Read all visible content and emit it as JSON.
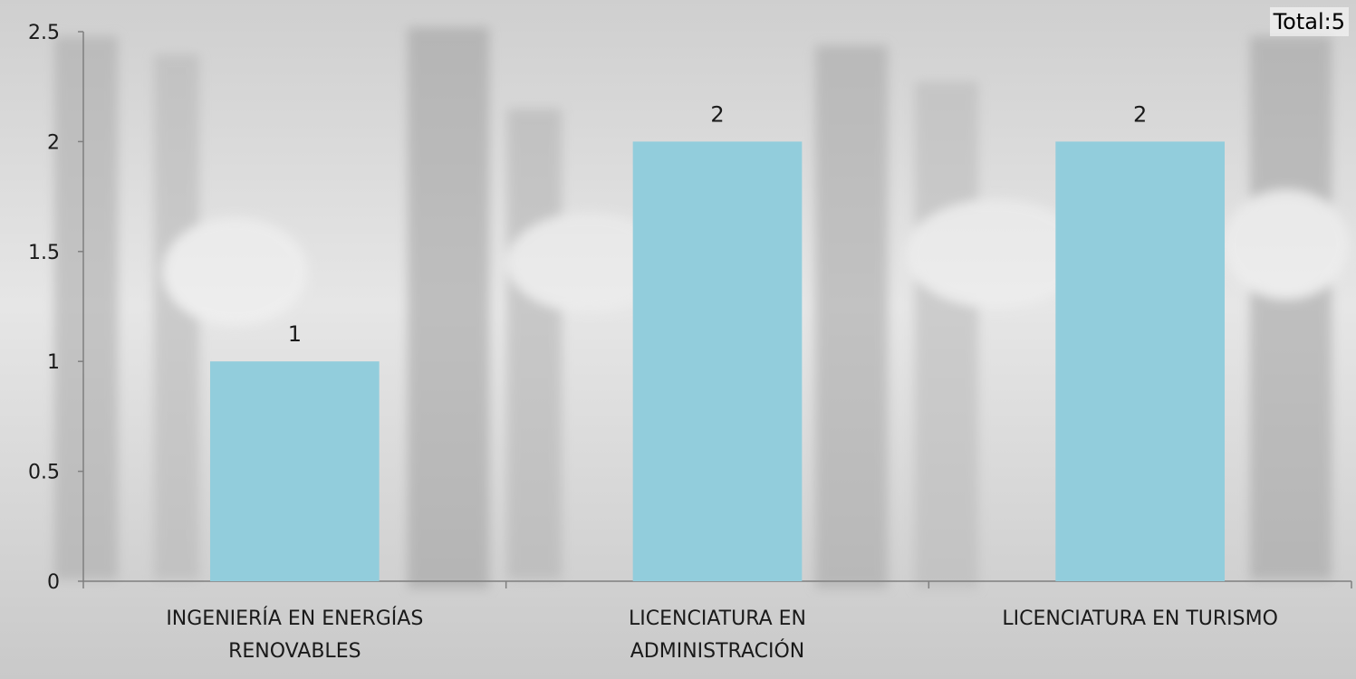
{
  "chart_data": {
    "type": "bar",
    "title": "",
    "xlabel": "",
    "ylabel": "",
    "categories": [
      [
        "INGENIERÍA EN ENERGÍAS",
        "RENOVABLES"
      ],
      [
        "LICENCIATURA EN",
        "ADMINISTRACIÓN"
      ],
      [
        "LICENCIATURA EN TURISMO"
      ]
    ],
    "values": [
      1,
      2,
      2
    ],
    "value_labels": [
      "1",
      "2",
      "2"
    ],
    "ylim": [
      0,
      2.5
    ],
    "yticks": [
      0,
      0.5,
      1,
      1.5,
      2,
      2.5
    ],
    "ytick_labels": [
      "0",
      "0.5",
      "1",
      "1.5",
      "2",
      "2.5"
    ],
    "bar_color": "#92cddc",
    "grid": false,
    "legend": "none"
  },
  "total_label": "Total:5"
}
